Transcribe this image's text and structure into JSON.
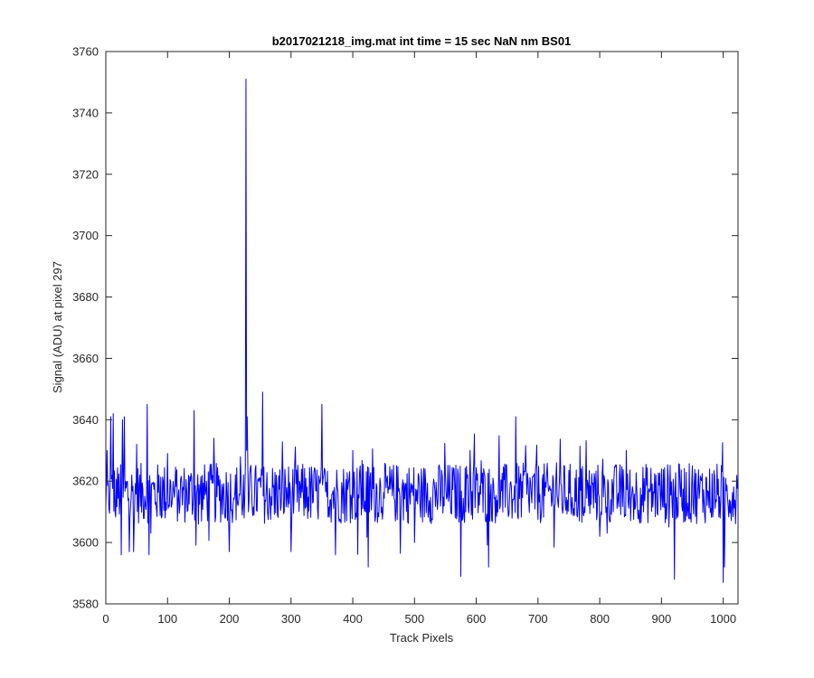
{
  "chart_data": {
    "type": "line",
    "title": "b2017021218_img.mat int time = 15 sec  NaN nm BS01",
    "xlabel": "Track Pixels",
    "ylabel": "Signal (ADU) at pixel 297",
    "xlim": [
      0,
      1024
    ],
    "ylim": [
      3580,
      3760
    ],
    "xticks": [
      0,
      100,
      200,
      300,
      400,
      500,
      600,
      700,
      800,
      900,
      1000
    ],
    "yticks": [
      3580,
      3600,
      3620,
      3640,
      3660,
      3680,
      3700,
      3720,
      3740,
      3760
    ],
    "grid": false,
    "series": [
      {
        "color": "#0000ff",
        "baseline": 3616,
        "noise_amplitude": 9,
        "n_points": 1024,
        "x": [
          0,
          2,
          5,
          8,
          12,
          15,
          25,
          27,
          30,
          38,
          45,
          50,
          67,
          70,
          100,
          143,
          150,
          175,
          200,
          224,
          226,
          227,
          228,
          229,
          231,
          254,
          300,
          350,
          372,
          400,
          425,
          500,
          575,
          590,
          620,
          664,
          730,
          800,
          921,
          950,
          1000,
          1002,
          1024
        ],
        "y": [
          3612,
          3630,
          3611,
          3641,
          3642,
          3610,
          3596,
          3640,
          3641,
          3597,
          3597,
          3632,
          3645,
          3596,
          3629,
          3643,
          3606,
          3634,
          3597,
          3608,
          3625,
          3751,
          3630,
          3641,
          3610,
          3649,
          3597,
          3645,
          3596,
          3630,
          3592,
          3600,
          3589,
          3630,
          3592,
          3641,
          3626,
          3602,
          3588,
          3625,
          3587,
          3592,
          3616
        ]
      }
    ]
  }
}
